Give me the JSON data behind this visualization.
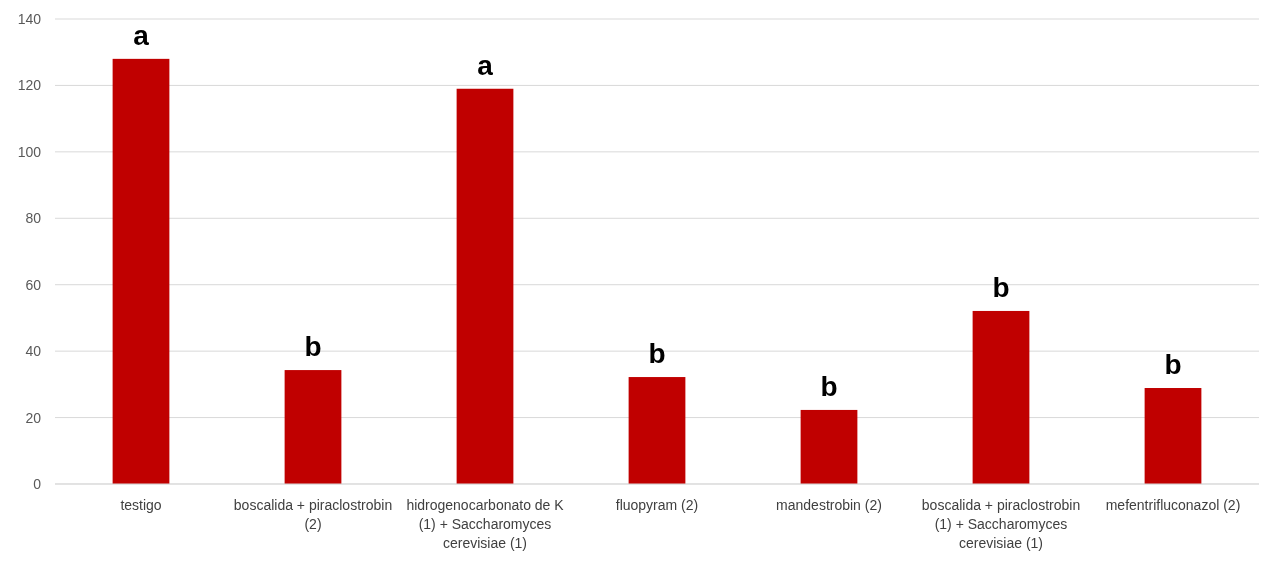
{
  "chart_data": {
    "type": "bar",
    "categories": [
      "testigo",
      "boscalida + piraclostrobin (2)",
      "hidrogenocarbonato de K (1) + Saccharomyces cerevisiae (1)",
      "fluopyram (2)",
      "mandestrobin (2)",
      "boscalida + piraclostrobin (1) + Saccharomyces cerevisiae (1)",
      "mefentrifluconazol (2)"
    ],
    "values": [
      128,
      34.3,
      119,
      32.2,
      22.3,
      52.1,
      28.9
    ],
    "color": "#c00000",
    "ylim": [
      0,
      140
    ],
    "yticks": [
      0,
      20,
      40,
      60,
      80,
      100,
      120,
      140
    ],
    "grid": "y",
    "annotations": [
      {
        "text": "a",
        "x": "testigo",
        "y": 128
      },
      {
        "text": "b",
        "x": "boscalida + piraclostrobin (2)",
        "y": 34.3
      },
      {
        "text": "a",
        "x": "hidrogenocarbonato de K (1) + Saccharomyces cerevisiae (1)",
        "y": 119
      },
      {
        "text": "b",
        "x": "fluopyram (2)",
        "y": 32.2
      },
      {
        "text": "b",
        "x": "mandestrobin (2)",
        "y": 22.3
      },
      {
        "text": "b",
        "x": "boscalida + piraclostrobin (1) + Saccharomyces cerevisiae (1)",
        "y": 52.1
      },
      {
        "text": "b",
        "x": "mefentrifluconazol (2)",
        "y": 28.9
      }
    ]
  }
}
